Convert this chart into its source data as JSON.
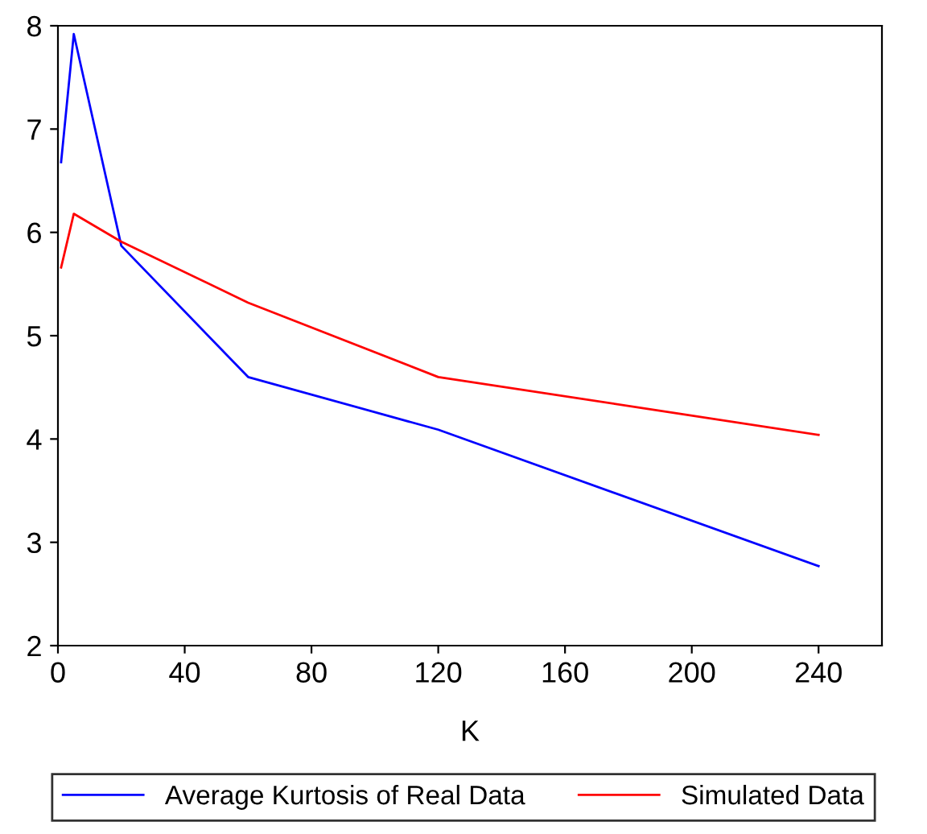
{
  "chart_data": {
    "type": "line",
    "xlabel": "K",
    "x": [
      1,
      5,
      20,
      60,
      120,
      240
    ],
    "series": [
      {
        "name": "Average Kurtosis of Real Data",
        "color": "#0000ff",
        "values": [
          6.68,
          7.92,
          5.87,
          4.6,
          4.09,
          2.77
        ]
      },
      {
        "name": "Simulated Data",
        "color": "#ff0000",
        "values": [
          5.66,
          6.18,
          5.91,
          5.32,
          4.6,
          4.04
        ]
      }
    ],
    "xlim": [
      0,
      260
    ],
    "xticks": [
      0,
      40,
      80,
      120,
      160,
      200,
      240
    ],
    "ylim": [
      2,
      8
    ],
    "yticks": [
      2,
      3,
      4,
      5,
      6,
      7,
      8
    ],
    "grid": false,
    "legend": "bottom",
    "marker": "none",
    "line_style": "solid"
  }
}
